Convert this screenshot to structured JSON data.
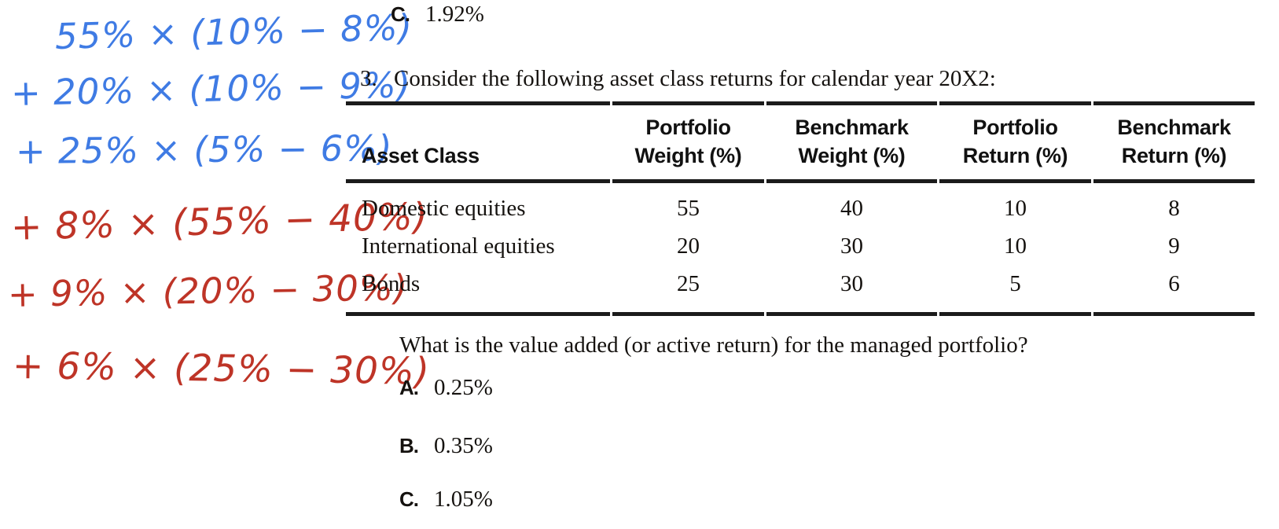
{
  "page": {
    "background": "#ffffff",
    "text_color": "#15120f",
    "rule_color": "#1b1b1b"
  },
  "previous_question": {
    "option_c": {
      "letter": "C.",
      "value": "1.92%"
    }
  },
  "question3": {
    "number": "3.",
    "text": "Consider the following asset class returns for calendar year 20X2:",
    "table": {
      "columns": [
        {
          "line1": "",
          "line2": "Asset Class"
        },
        {
          "line1": "Portfolio",
          "line2": "Weight (%)"
        },
        {
          "line1": "Benchmark",
          "line2": "Weight (%)"
        },
        {
          "line1": "Portfolio",
          "line2": "Return (%)"
        },
        {
          "line1": "Benchmark",
          "line2": "Return (%)"
        }
      ],
      "rows": [
        [
          "Domestic equities",
          "55",
          "40",
          "10",
          "8"
        ],
        [
          "International equities",
          "20",
          "30",
          "10",
          "9"
        ],
        [
          "Bonds",
          "25",
          "30",
          "5",
          "6"
        ]
      ]
    },
    "prompt": "What is the value added (or active return) for the managed portfolio?",
    "options": [
      {
        "letter": "A.",
        "value": "0.25%"
      },
      {
        "letter": "B.",
        "value": "0.35%"
      },
      {
        "letter": "C.",
        "value": "1.05%"
      }
    ]
  },
  "annotations": {
    "ink_colors": {
      "blue": "#3F7BE4",
      "red": "#BE3427"
    },
    "lines": [
      {
        "text": "55% × (10% − 8%)",
        "color": "blue"
      },
      {
        "text": "+ 20% × (10% − 9%)",
        "color": "blue"
      },
      {
        "text": "+ 25% × (5% − 6%)",
        "color": "blue"
      },
      {
        "text": "+ 8% × (55% − 40%)",
        "color": "red"
      },
      {
        "text": "+ 9% × (20% − 30%)",
        "color": "red"
      },
      {
        "text": "+ 6% × (25% − 30%)",
        "color": "red"
      }
    ]
  }
}
